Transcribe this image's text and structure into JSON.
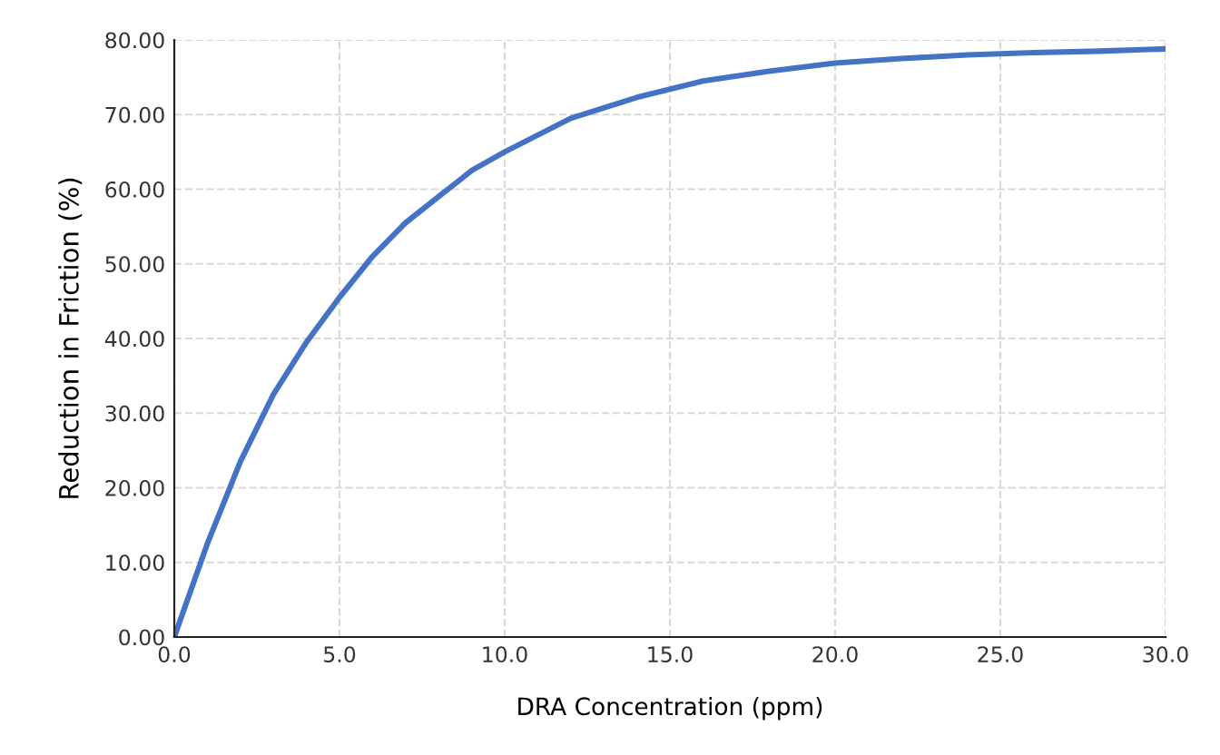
{
  "chart_data": {
    "type": "line",
    "xlabel": "DRA Concentration (ppm)",
    "ylabel": "Reduction in Friction (%)",
    "x": [
      0,
      1,
      2,
      3,
      4,
      5,
      6,
      7,
      8,
      9,
      10,
      12,
      14,
      16,
      18,
      20,
      22,
      24,
      26,
      28,
      30
    ],
    "series": [
      {
        "color": "#4472c4",
        "values": [
          0,
          12.5,
          23.5,
          32.5,
          39.5,
          45.5,
          51,
          55.5,
          59,
          62.5,
          65,
          69.5,
          72.3,
          74.5,
          75.8,
          76.9,
          77.5,
          78,
          78.3,
          78.5,
          78.8
        ]
      }
    ],
    "xlim": [
      0,
      30
    ],
    "xticks": [
      {
        "value": 0,
        "label": "0.0"
      },
      {
        "value": 5,
        "label": "5.0"
      },
      {
        "value": 10,
        "label": "10.0"
      },
      {
        "value": 15,
        "label": "15.0"
      },
      {
        "value": 20,
        "label": "20.0"
      },
      {
        "value": 25,
        "label": "25.0"
      },
      {
        "value": 30,
        "label": "30.0"
      }
    ],
    "ylim": [
      0,
      80
    ],
    "yticks": [
      {
        "value": 0,
        "label": "0.00"
      },
      {
        "value": 10,
        "label": "10.00"
      },
      {
        "value": 20,
        "label": "20.00"
      },
      {
        "value": 30,
        "label": "30.00"
      },
      {
        "value": 40,
        "label": "40.00"
      },
      {
        "value": 50,
        "label": "50.00"
      },
      {
        "value": 60,
        "label": "60.00"
      },
      {
        "value": 70,
        "label": "70.00"
      },
      {
        "value": 80,
        "label": "80.00"
      }
    ],
    "grid": true,
    "marker": "none",
    "line_style": "solid"
  }
}
